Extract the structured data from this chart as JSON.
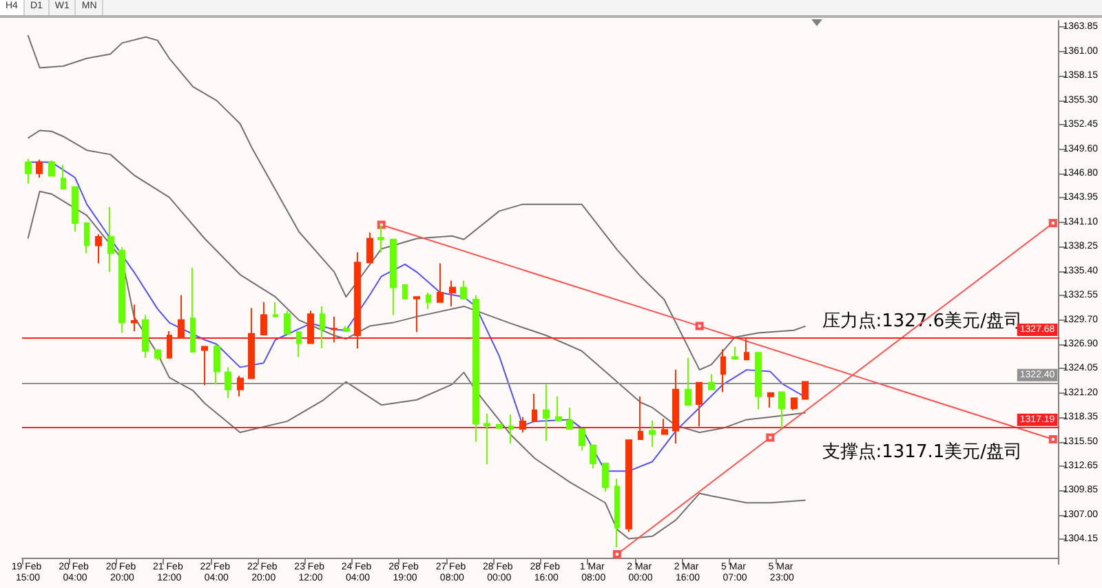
{
  "chart_data": {
    "type": "candlestick",
    "categories": [
      "19 Feb 15:00",
      null,
      null,
      null,
      "20 Feb 04:00",
      null,
      null,
      null,
      "20 Feb 20:00",
      null,
      null,
      null,
      "21 Feb 12:00",
      null,
      null,
      null,
      "22 Feb 04:00",
      null,
      null,
      null,
      "22 Feb 20:00",
      null,
      null,
      null,
      "23 Feb 12:00",
      null,
      null,
      null,
      "24 Feb 04:00",
      null,
      null,
      null,
      "26 Feb 19:00",
      null,
      null,
      null,
      "27 Feb 08:00",
      null,
      null,
      null,
      "28 Feb 00:00",
      null,
      null,
      null,
      "28 Feb 16:00",
      null,
      null,
      null,
      "1 Mar 08:00",
      null,
      null,
      null,
      "2 Mar 00:00",
      null,
      null,
      null,
      "2 Mar 16:00",
      null,
      null,
      null,
      "5 Mar 07:00",
      null,
      null,
      null,
      "5 Mar 23:00",
      null,
      null,
      null,
      null,
      null,
      null,
      null,
      null,
      null,
      null,
      null,
      null,
      null,
      null,
      null,
      null,
      null,
      null,
      null,
      null,
      null,
      null,
      null
    ],
    "ohlc": [
      [
        1348.1,
        1348.5,
        1345.6,
        1346.8
      ],
      [
        1346.8,
        1348.4,
        1346.3,
        1348.1
      ],
      [
        1348.1,
        1348.3,
        1346.5,
        1346.5
      ],
      [
        1346.2,
        1347.8,
        1345.0,
        1345.0
      ],
      [
        1345.2,
        1345.3,
        1340.0,
        1341.0
      ],
      [
        1341.0,
        1341.1,
        1337.5,
        1338.4
      ],
      [
        1338.4,
        1339.7,
        1336.3,
        1339.4
      ],
      [
        1339.4,
        1342.9,
        1335.3,
        1337.5
      ],
      [
        1337.8,
        1338.2,
        1328.2,
        1329.4
      ],
      [
        1329.4,
        1331.5,
        1328.4,
        1329.6
      ],
      [
        1329.7,
        1330.3,
        1325.3,
        1326.1
      ],
      [
        1326.2,
        1326.3,
        1325.0,
        1325.3
      ],
      [
        1325.3,
        1328.4,
        1325.3,
        1327.9
      ],
      [
        1327.6,
        1332.6,
        1327.6,
        1329.7
      ],
      [
        1329.9,
        1335.8,
        1326.0,
        1326.0
      ],
      [
        1326.2,
        1326.6,
        1322.1,
        1326.6
      ],
      [
        1326.6,
        1326.9,
        1322.2,
        1323.7
      ],
      [
        1323.6,
        1324.2,
        1320.6,
        1321.6
      ],
      [
        1321.6,
        1323.2,
        1320.8,
        1322.9
      ],
      [
        1322.9,
        1331.1,
        1322.9,
        1328.1
      ],
      [
        1328.0,
        1331.8,
        1328.0,
        1330.3
      ],
      [
        1330.3,
        1331.8,
        1330.1,
        1330.1
      ],
      [
        1330.4,
        1330.8,
        1328.1,
        1328.1
      ],
      [
        1328.3,
        1328.3,
        1325.4,
        1327.0
      ],
      [
        1327.0,
        1330.8,
        1327.0,
        1330.4
      ],
      [
        1330.4,
        1331.3,
        1326.4,
        1328.6
      ],
      [
        1328.6,
        1330.1,
        1327.1,
        1328.7
      ],
      [
        1328.7,
        1329.0,
        1328.4,
        1328.4
      ],
      [
        1327.9,
        1337.6,
        1326.4,
        1336.4
      ],
      [
        1336.4,
        1339.9,
        1336.4,
        1339.2
      ],
      [
        1339.3,
        1340.8,
        1337.6,
        1339.1
      ],
      [
        1339.1,
        1339.1,
        1330.3,
        1333.5
      ],
      [
        1333.8,
        1333.8,
        1332.1,
        1332.2
      ],
      [
        1332.2,
        1332.4,
        1328.3,
        1332.4
      ],
      [
        1332.6,
        1332.9,
        1331.0,
        1331.8
      ],
      [
        1331.8,
        1336.3,
        1331.8,
        1332.9
      ],
      [
        1332.9,
        1334.3,
        1331.3,
        1333.5
      ],
      [
        1333.5,
        1334.3,
        1332.2,
        1332.2
      ],
      [
        1332.1,
        1332.6,
        1315.5,
        1317.6
      ],
      [
        1317.6,
        1318.8,
        1312.9,
        1317.4
      ],
      [
        1317.5,
        1317.5,
        1317.0,
        1317.1
      ],
      [
        1317.3,
        1318.7,
        1315.3,
        1317.0
      ],
      [
        1317.0,
        1318.4,
        1316.6,
        1317.9
      ],
      [
        1317.9,
        1321.1,
        1317.9,
        1319.2
      ],
      [
        1319.2,
        1322.2,
        1315.6,
        1318.3
      ],
      [
        1318.4,
        1320.8,
        1317.9,
        1318.0
      ],
      [
        1318.0,
        1319.5,
        1316.9,
        1317.0
      ],
      [
        1317.0,
        1317.0,
        1314.5,
        1315.1
      ],
      [
        1315.1,
        1315.1,
        1312.4,
        1313.0
      ],
      [
        1313.0,
        1313.0,
        1309.7,
        1310.2
      ],
      [
        1310.3,
        1311.2,
        1303.2,
        1305.5
      ],
      [
        1305.4,
        1315.7,
        1305.0,
        1315.7
      ],
      [
        1315.8,
        1320.8,
        1315.8,
        1316.7
      ],
      [
        1316.8,
        1318.0,
        1314.9,
        1316.4
      ],
      [
        1316.4,
        1318.2,
        1316.4,
        1316.9
      ],
      [
        1316.8,
        1323.9,
        1315.3,
        1321.6
      ],
      [
        1321.6,
        1325.3,
        1319.8,
        1319.8
      ],
      [
        1319.9,
        1322.4,
        1317.3,
        1322.4
      ],
      [
        1322.4,
        1323.4,
        1321.6,
        1321.6
      ],
      [
        1323.4,
        1326.3,
        1321.3,
        1325.4
      ],
      [
        1325.4,
        1326.6,
        1325.2,
        1325.2
      ],
      [
        1325.1,
        1327.5,
        1325.1,
        1325.9
      ],
      [
        1325.9,
        1325.9,
        1319.3,
        1320.8
      ],
      [
        1320.8,
        1321.2,
        1319.5,
        1321.2
      ],
      [
        1321.3,
        1321.3,
        1317.1,
        1319.4
      ],
      [
        1319.4,
        1320.6,
        1319.2,
        1320.6
      ],
      [
        1320.5,
        1322.5,
        1320.5,
        1322.5
      ],
      null,
      null,
      null,
      null,
      null,
      null,
      null,
      null,
      null,
      null,
      null,
      null,
      null,
      null,
      null,
      null,
      null,
      null,
      null,
      null,
      null
    ],
    "colors": [
      "#66ff00",
      "#ff3300",
      "#66ff00",
      "#66ff00",
      "#66ff00",
      "#66ff00",
      "#ff3300",
      "#66ff00",
      "#66ff00",
      "#ff3300",
      "#66ff00",
      "#66ff00",
      "#ff3300",
      "#ff3300",
      "#66ff00",
      "#ff3300",
      "#66ff00",
      "#66ff00",
      "#ff3300",
      "#ff3300",
      "#ff3300",
      "#66ff00",
      "#66ff00",
      "#66ff00",
      "#ff3300",
      "#66ff00",
      "#ff3300",
      "#66ff00",
      "#ff3300",
      "#ff3300",
      "#66ff00",
      "#66ff00",
      "#66ff00",
      "#ff3300",
      "#66ff00",
      "#ff3300",
      "#ff3300",
      "#66ff00",
      "#66ff00",
      "#66ff00",
      "#66ff00",
      "#66ff00",
      "#ff3300",
      "#ff3300",
      "#66ff00",
      "#66ff00",
      "#66ff00",
      "#66ff00",
      "#66ff00",
      "#66ff00",
      "#66ff00",
      "#ff3300",
      "#ff3300",
      "#66ff00",
      "#ff3300",
      "#ff3300",
      "#66ff00",
      "#ff3300",
      "#66ff00",
      "#ff3300",
      "#66ff00",
      "#ff3300",
      "#66ff00",
      "#ff3300",
      "#66ff00",
      "#ff3300",
      "#ff3300",
      null,
      null,
      null,
      null,
      null,
      null,
      null,
      null,
      null,
      null,
      null,
      null,
      null,
      null,
      null,
      null,
      null,
      null,
      null,
      null,
      null
    ],
    "series": [
      {
        "type": "line",
        "color": "#707070",
        "values": [
          1362.9,
          1359.1,
          null,
          1359.3,
          null,
          1360.2,
          null,
          1360.7,
          1362.0,
          null,
          1362.7,
          1362.3,
          1360.2,
          null,
          1356.9,
          null,
          1355.3,
          null,
          1352.6,
          1349.8,
          null,
          null,
          null,
          1340.0,
          null,
          null,
          1335.3,
          1332.4,
          null,
          null,
          1338.0,
          null,
          null,
          1339.2,
          null,
          null,
          1339.5,
          1339.1,
          null,
          null,
          1342.4,
          null,
          1343.2,
          null,
          null,
          null,
          null,
          1343.2,
          null,
          null,
          1337.9,
          null,
          1334.8,
          null,
          1332.1,
          null,
          null,
          1323.9,
          1324.5,
          null,
          1327.7,
          null,
          1328.2,
          null,
          null,
          1328.5,
          1329.0,
          null,
          null,
          null,
          null,
          null,
          null,
          null,
          null,
          null,
          null,
          null,
          null,
          null,
          null,
          null,
          null,
          null,
          null,
          null,
          null,
          null
        ]
      },
      {
        "type": "line",
        "color": "#707070",
        "values": [
          1350.9,
          1351.8,
          1351.7,
          1351.1,
          null,
          1349.5,
          null,
          1349.0,
          null,
          1346.6,
          null,
          null,
          1344.0,
          null,
          null,
          1339.2,
          null,
          null,
          1335.0,
          null,
          null,
          1332.4,
          null,
          1329.7,
          null,
          null,
          1327.9,
          1327.5,
          null,
          1329.0,
          null,
          1329.4,
          null,
          1330.1,
          null,
          null,
          null,
          1331.3,
          null,
          null,
          null,
          1329.3,
          null,
          null,
          1327.9,
          null,
          null,
          1326.1,
          null,
          1323.7,
          null,
          null,
          1320.1,
          1319.5,
          null,
          1317.4,
          null,
          1316.6,
          null,
          1317.1,
          null,
          1318.1,
          null,
          1318.4,
          null,
          null,
          1318.9,
          null,
          null,
          null,
          null,
          null,
          null,
          null,
          null,
          null,
          null,
          null,
          null,
          null,
          null,
          null,
          null,
          null,
          null,
          null,
          null,
          null
        ]
      },
      {
        "type": "line",
        "color": "#707070",
        "values": [
          1339.2,
          1344.7,
          1344.4,
          null,
          null,
          1341.9,
          null,
          null,
          1336.8,
          1330.1,
          null,
          1325.8,
          1323.0,
          null,
          1321.5,
          1320.0,
          null,
          null,
          1316.6,
          null,
          null,
          null,
          1317.9,
          null,
          null,
          1320.3,
          null,
          1322.5,
          null,
          null,
          1319.8,
          null,
          null,
          1320.4,
          null,
          null,
          1322.2,
          1323.6,
          1321.5,
          null,
          null,
          1316.3,
          null,
          1313.6,
          null,
          null,
          1310.8,
          null,
          null,
          1308.4,
          1305.3,
          1304.2,
          null,
          1304.5,
          null,
          1306.4,
          null,
          1309.5,
          1309.2,
          null,
          null,
          1308.4,
          null,
          1308.4,
          null,
          null,
          1308.7,
          null,
          null,
          null,
          null,
          null,
          null,
          null,
          null,
          null,
          null,
          null,
          null,
          null,
          null,
          null,
          null,
          null,
          null,
          null,
          null,
          null
        ]
      },
      {
        "type": "line",
        "color": "#5050ff",
        "values": [
          1348.1,
          null,
          1348.1,
          null,
          1346.3,
          1343.2,
          null,
          1339.2,
          null,
          1335.3,
          null,
          1331.0,
          1329.4,
          null,
          null,
          1327.4,
          1326.9,
          null,
          1324.2,
          null,
          1324.7,
          1327.4,
          null,
          null,
          1329.3,
          null,
          1328.6,
          1328.5,
          null,
          1332.6,
          1334.8,
          null,
          1336.2,
          1335.3,
          null,
          1332.9,
          null,
          1332.4,
          1331.3,
          null,
          1325.5,
          null,
          1317.4,
          1317.9,
          null,
          null,
          1318.1,
          1317.1,
          null,
          1312.1,
          null,
          1312.1,
          null,
          1313.2,
          null,
          1316.8,
          null,
          1319.5,
          null,
          1322.2,
          null,
          1323.9,
          null,
          1323.7,
          1322.3,
          null,
          1320.7,
          null,
          null,
          null,
          null,
          null,
          null,
          null,
          null,
          null,
          null,
          null,
          null,
          null,
          null,
          null,
          null,
          null,
          null,
          null,
          null,
          null
        ]
      },
      {
        "type": "line",
        "color": "#ff5050",
        "marker": "square",
        "values": [
          null,
          null,
          null,
          null,
          null,
          null,
          null,
          null,
          null,
          null,
          null,
          null,
          null,
          null,
          null,
          null,
          null,
          null,
          null,
          null,
          null,
          null,
          null,
          null,
          null,
          null,
          null,
          null,
          null,
          null,
          1340.8,
          null,
          null,
          null,
          null,
          null,
          null,
          null,
          null,
          null,
          null,
          null,
          null,
          null,
          null,
          null,
          null,
          null,
          null,
          null,
          null,
          null,
          null,
          null,
          null,
          null,
          null,
          1329.0,
          null,
          null,
          null,
          null,
          null,
          null,
          null,
          null,
          null,
          null,
          null,
          null,
          null,
          null,
          null,
          null,
          null,
          null,
          null,
          null,
          null,
          null,
          null,
          null,
          null,
          null,
          null,
          null,
          null,
          1315.8
        ]
      },
      {
        "type": "line",
        "color": "#ff5050",
        "marker": "square",
        "values": [
          null,
          null,
          null,
          null,
          null,
          null,
          null,
          null,
          null,
          null,
          null,
          null,
          null,
          null,
          null,
          null,
          null,
          null,
          null,
          null,
          null,
          null,
          null,
          null,
          null,
          null,
          null,
          null,
          null,
          null,
          null,
          null,
          null,
          null,
          null,
          null,
          null,
          null,
          null,
          null,
          null,
          null,
          null,
          null,
          null,
          null,
          null,
          null,
          null,
          null,
          1302.4,
          null,
          null,
          null,
          null,
          null,
          null,
          null,
          null,
          null,
          null,
          null,
          null,
          1316.0,
          null,
          null,
          null,
          null,
          null,
          null,
          null,
          null,
          null,
          null,
          null,
          null,
          null,
          null,
          null,
          null,
          null,
          null,
          null,
          null,
          null,
          null,
          null,
          1341.0
        ]
      }
    ],
    "ylim": [
      1302,
      1364.6
    ],
    "yticks": [
      {
        "value": 1363.85,
        "label": "1363.85"
      },
      {
        "value": 1361.0,
        "label": "1361.00"
      },
      {
        "value": 1358.15,
        "label": "1358.15"
      },
      {
        "value": 1355.3,
        "label": "1355.30"
      },
      {
        "value": 1352.45,
        "label": "1352.45"
      },
      {
        "value": 1349.6,
        "label": "1349.60"
      },
      {
        "value": 1346.8,
        "label": "1346.80"
      },
      {
        "value": 1343.95,
        "label": "1343.95"
      },
      {
        "value": 1341.1,
        "label": "1341.10"
      },
      {
        "value": 1338.25,
        "label": "1338.25"
      },
      {
        "value": 1335.4,
        "label": "1335.40"
      },
      {
        "value": 1332.55,
        "label": "1332.55"
      },
      {
        "value": 1329.7,
        "label": "1329.70"
      },
      {
        "value": 1326.9,
        "label": "1326.90"
      },
      {
        "value": 1324.05,
        "label": "1324.05"
      },
      {
        "value": 1321.2,
        "label": "1321.20"
      },
      {
        "value": 1318.35,
        "label": "1318.35"
      },
      {
        "value": 1315.5,
        "label": "1315.50"
      },
      {
        "value": 1312.65,
        "label": "1312.65"
      },
      {
        "value": 1309.85,
        "label": "1309.85"
      },
      {
        "value": 1307.0,
        "label": "1307.00"
      },
      {
        "value": 1304.15,
        "label": "1304.15"
      }
    ],
    "ref_lines": [
      {
        "axis": "y",
        "value": 1327.68,
        "label": "1327.68",
        "color": "#ff2020"
      },
      {
        "axis": "y",
        "value": 1322.4,
        "label": "1322.40",
        "color": "#909090"
      },
      {
        "axis": "y",
        "value": 1317.19,
        "label": "1317.19",
        "color": "#ff2020"
      }
    ],
    "annotations": [
      "压力点:1327.6美元/盘司",
      "支撑点:1317.1美元/盘司",
      "H4",
      "D1",
      "W1",
      "MN"
    ],
    "marker": "none"
  }
}
